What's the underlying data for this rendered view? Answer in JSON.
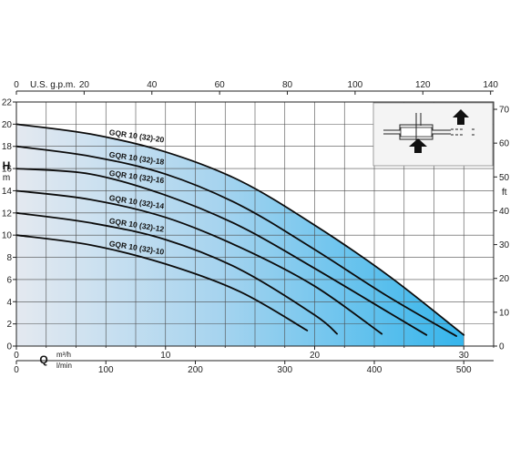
{
  "chart_data": {
    "type": "line",
    "left_axis": {
      "title": "H",
      "unit": "m",
      "ticks": [
        0,
        2,
        4,
        6,
        8,
        10,
        12,
        14,
        16,
        18,
        20,
        22
      ],
      "range": [
        0,
        22
      ]
    },
    "right_axis": {
      "unit": "ft",
      "ticks": [
        0,
        10,
        20,
        30,
        40,
        50,
        60,
        70
      ]
    },
    "top_axis": {
      "title": "U.S. g.p.m.",
      "ticks": [
        0,
        20,
        40,
        60,
        80,
        100,
        120,
        140
      ]
    },
    "bottom_axis": {
      "ticks": [
        0,
        10,
        20,
        30
      ],
      "range": [
        0,
        30
      ]
    },
    "bottom_axis_2": {
      "title": "Q",
      "unit_1": "m³/h",
      "unit_2": "l/min",
      "ticks": [
        0,
        100,
        200,
        300,
        400,
        500
      ]
    },
    "grid": true,
    "series": [
      {
        "name": "GQR 10 (32)-20",
        "x": [
          0,
          5,
          10,
          15,
          20,
          25,
          30
        ],
        "y": [
          20,
          19.1,
          17.5,
          14.9,
          10.9,
          6.3,
          1.0
        ]
      },
      {
        "name": "GQR 10 (32)-18",
        "x": [
          0,
          5,
          10,
          15,
          20,
          25,
          29.5
        ],
        "y": [
          18,
          17.1,
          15.5,
          12.7,
          8.7,
          4.4,
          0.9
        ]
      },
      {
        "name": "GQR 10 (32)-16",
        "x": [
          0,
          5,
          10,
          15,
          20,
          25,
          27.5
        ],
        "y": [
          16,
          15.5,
          13.6,
          10.8,
          7.0,
          3.0,
          1.0
        ]
      },
      {
        "name": "GQR 10 (32)-14",
        "x": [
          0,
          5,
          10,
          15,
          20,
          24.5
        ],
        "y": [
          14,
          13.2,
          11.6,
          8.9,
          5.4,
          1.1
        ]
      },
      {
        "name": "GQR 10 (32)-12",
        "x": [
          0,
          5,
          10,
          15,
          20,
          21.5
        ],
        "y": [
          12,
          11.1,
          9.6,
          6.9,
          2.8,
          1.1
        ]
      },
      {
        "name": "GQR 10 (32)-10",
        "x": [
          0,
          5,
          10,
          15,
          19.5
        ],
        "y": [
          10,
          9.1,
          7.4,
          4.9,
          1.4
        ]
      }
    ],
    "fill_colors": {
      "left": "#e4e9f0",
      "right": "#39b7ec"
    }
  }
}
